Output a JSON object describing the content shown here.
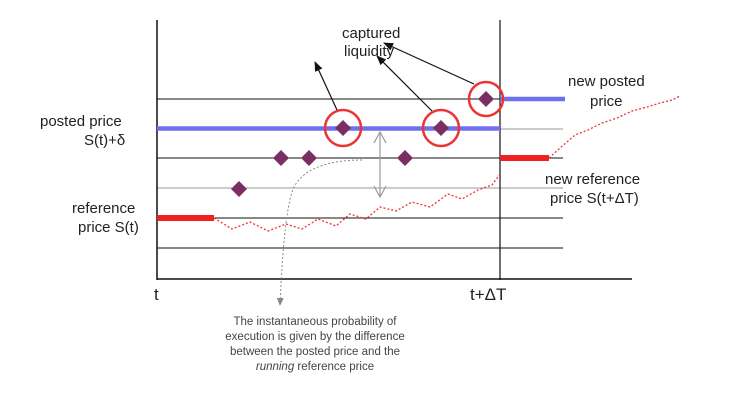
{
  "labels": {
    "captured_line1": "captured",
    "captured_line2": "liquidity",
    "posted_line1": "posted price",
    "posted_line2": "S(t)+δ",
    "reference_line1": "reference",
    "reference_line2": "price S(t)",
    "new_posted_line1": "new posted",
    "new_posted_line2": "price",
    "new_reference_line1": "new reference",
    "new_reference_line2": "price S(t+ΔT)",
    "x_start": "t",
    "x_end": "t+ΔT"
  },
  "note": {
    "line1": "The instantaneous probability of",
    "line2": "execution is given by the difference",
    "line3": "between the posted price and the",
    "line4_italic": "running",
    "line4_rest": " reference price"
  },
  "colors": {
    "posted_price": "#7070ee",
    "reference_price": "#ee2222",
    "order": "#7a2e63",
    "circle": "#ee3333"
  }
}
